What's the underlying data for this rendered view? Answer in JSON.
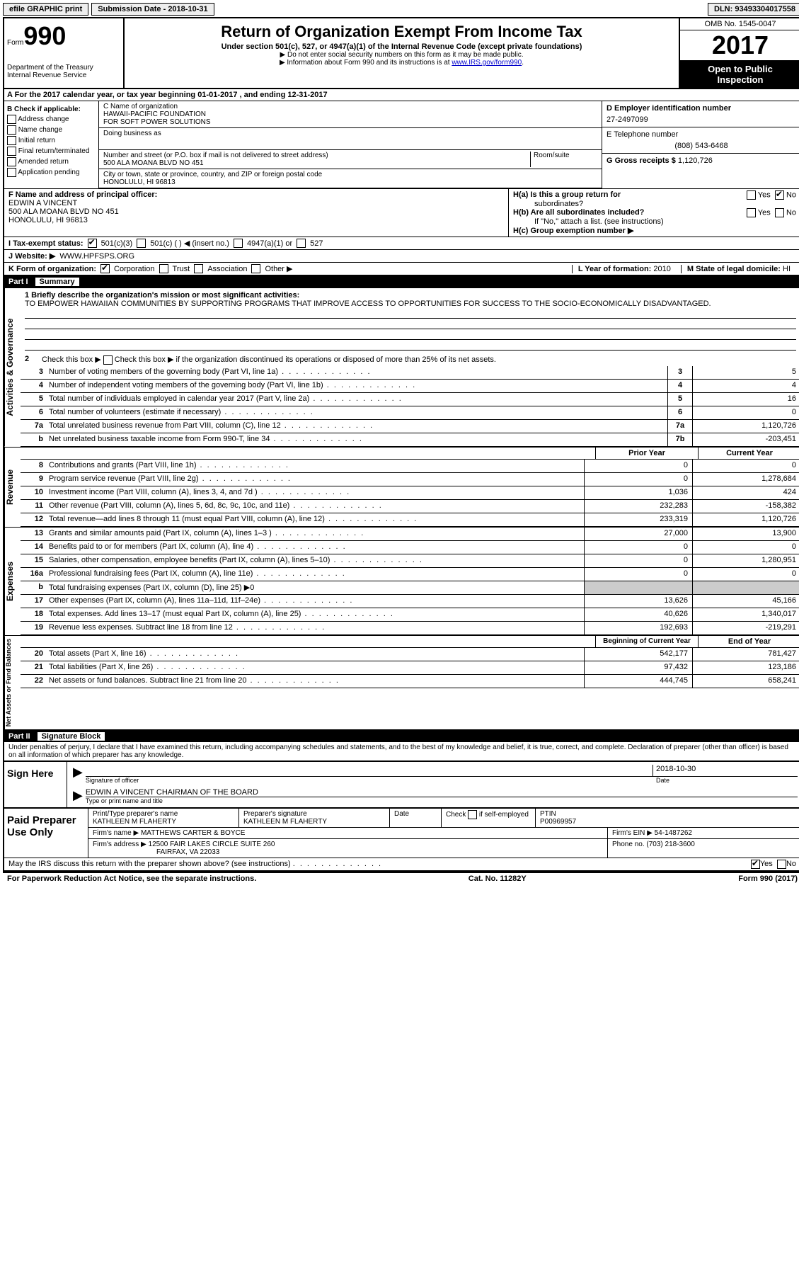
{
  "topbar": {
    "efile": "efile GRAPHIC print",
    "submission": "Submission Date - 2018-10-31",
    "dln": "DLN: 93493304017558"
  },
  "header": {
    "form_word": "Form",
    "form_num": "990",
    "dept1": "Department of the Treasury",
    "dept2": "Internal Revenue Service",
    "title": "Return of Organization Exempt From Income Tax",
    "sub": "Under section 501(c), 527, or 4947(a)(1) of the Internal Revenue Code (except private foundations)",
    "note1": "▶ Do not enter social security numbers on this form as it may be made public.",
    "note2_pre": "▶ Information about Form 990 and its instructions is at ",
    "note2_link": "www.IRS.gov/form990",
    "omb": "OMB No. 1545-0047",
    "year": "2017",
    "open1": "Open to Public",
    "open2": "Inspection"
  },
  "secA": "A   For the 2017 calendar year, or tax year beginning 01-01-2017    , and ending 12-31-2017",
  "colB": {
    "title": "B Check if applicable:",
    "items": [
      "Address change",
      "Name change",
      "Initial return",
      "Final return/terminated",
      "Amended return",
      "Application pending"
    ]
  },
  "colC": {
    "name_label": "C Name of organization",
    "name1": "HAWAII-PACIFIC FOUNDATION",
    "name2": "FOR SOFT POWER SOLUTIONS",
    "dba_label": "Doing business as",
    "street_label": "Number and street (or P.O. box if mail is not delivered to street address)",
    "room_label": "Room/suite",
    "street": "500 ALA MOANA BLVD NO 451",
    "city_label": "City or town, state or province, country, and ZIP or foreign postal code",
    "city": "HONOLULU, HI  96813"
  },
  "colD": {
    "ein_label": "D Employer identification number",
    "ein": "27-2497099",
    "phone_label": "E Telephone number",
    "phone": "(808) 543-6468",
    "gross_label": "G Gross receipts $",
    "gross": "1,120,726"
  },
  "colF": {
    "label": "F  Name and address of principal officer:",
    "name": "EDWIN A VINCENT",
    "addr1": "500 ALA MOANA BLVD NO 451",
    "addr2": "HONOLULU, HI  96813"
  },
  "colH": {
    "a_label": "H(a)  Is this a group return for",
    "a_sub": "subordinates?",
    "b_label": "H(b)  Are all subordinates included?",
    "b_note": "If \"No,\" attach a list. (see instructions)",
    "c_label": "H(c)  Group exemption number ▶",
    "yes": "Yes",
    "no": "No"
  },
  "rowI": {
    "label": "I   Tax-exempt status:",
    "o1": "501(c)(3)",
    "o2": "501(c) (   ) ◀ (insert no.)",
    "o3": "4947(a)(1) or",
    "o4": "527"
  },
  "rowJ": {
    "label": "J   Website: ▶",
    "val": "WWW.HPFSPS.ORG"
  },
  "rowK": {
    "label": "K Form of organization:",
    "o1": "Corporation",
    "o2": "Trust",
    "o3": "Association",
    "o4": "Other ▶"
  },
  "rowL": {
    "label": "L Year of formation:",
    "val": "2010"
  },
  "rowM": {
    "label": "M State of legal domicile:",
    "val": "HI"
  },
  "part1": {
    "num": "Part I",
    "title": "Summary"
  },
  "summary": {
    "l1_label": "1  Briefly describe the organization's mission or most significant activities:",
    "l1_text": "TO EMPOWER HAWAIIAN COMMUNITIES BY SUPPORTING PROGRAMS THAT IMPROVE ACCESS TO OPPORTUNITIES FOR SUCCESS TO THE SOCIO-ECONOMICALLY DISADVANTAGED.",
    "l2": "Check this box ▶       if the organization discontinued its operations or disposed of more than 25% of its net assets.",
    "rows_ag": [
      {
        "n": "3",
        "d": "Number of voting members of the governing body (Part VI, line 1a)",
        "b": "3",
        "v": "5"
      },
      {
        "n": "4",
        "d": "Number of independent voting members of the governing body (Part VI, line 1b)",
        "b": "4",
        "v": "4"
      },
      {
        "n": "5",
        "d": "Total number of individuals employed in calendar year 2017 (Part V, line 2a)",
        "b": "5",
        "v": "16"
      },
      {
        "n": "6",
        "d": "Total number of volunteers (estimate if necessary)",
        "b": "6",
        "v": "0"
      },
      {
        "n": "7a",
        "d": "Total unrelated business revenue from Part VIII, column (C), line 12",
        "b": "7a",
        "v": "1,120,726"
      },
      {
        "n": "b",
        "d": "Net unrelated business taxable income from Form 990-T, line 34",
        "b": "7b",
        "v": "-203,451"
      }
    ],
    "head_prior": "Prior Year",
    "head_current": "Current Year",
    "rows_rev": [
      {
        "n": "8",
        "d": "Contributions and grants (Part VIII, line 1h)",
        "p": "0",
        "c": "0"
      },
      {
        "n": "9",
        "d": "Program service revenue (Part VIII, line 2g)",
        "p": "0",
        "c": "1,278,684"
      },
      {
        "n": "10",
        "d": "Investment income (Part VIII, column (A), lines 3, 4, and 7d )",
        "p": "1,036",
        "c": "424"
      },
      {
        "n": "11",
        "d": "Other revenue (Part VIII, column (A), lines 5, 6d, 8c, 9c, 10c, and 11e)",
        "p": "232,283",
        "c": "-158,382"
      },
      {
        "n": "12",
        "d": "Total revenue—add lines 8 through 11 (must equal Part VIII, column (A), line 12)",
        "p": "233,319",
        "c": "1,120,726"
      }
    ],
    "rows_exp": [
      {
        "n": "13",
        "d": "Grants and similar amounts paid (Part IX, column (A), lines 1–3 )",
        "p": "27,000",
        "c": "13,900"
      },
      {
        "n": "14",
        "d": "Benefits paid to or for members (Part IX, column (A), line 4)",
        "p": "0",
        "c": "0"
      },
      {
        "n": "15",
        "d": "Salaries, other compensation, employee benefits (Part IX, column (A), lines 5–10)",
        "p": "0",
        "c": "1,280,951"
      },
      {
        "n": "16a",
        "d": "Professional fundraising fees (Part IX, column (A), line 11e)",
        "p": "0",
        "c": "0"
      },
      {
        "n": "b",
        "d": "Total fundraising expenses (Part IX, column (D), line 25) ▶0",
        "p": "",
        "c": "",
        "shade": true
      },
      {
        "n": "17",
        "d": "Other expenses (Part IX, column (A), lines 11a–11d, 11f–24e)",
        "p": "13,626",
        "c": "45,166"
      },
      {
        "n": "18",
        "d": "Total expenses. Add lines 13–17 (must equal Part IX, column (A), line 25)",
        "p": "40,626",
        "c": "1,340,017"
      },
      {
        "n": "19",
        "d": "Revenue less expenses. Subtract line 18 from line 12",
        "p": "192,693",
        "c": "-219,291"
      }
    ],
    "head_begin": "Beginning of Current Year",
    "head_end": "End of Year",
    "rows_net": [
      {
        "n": "20",
        "d": "Total assets (Part X, line 16)",
        "p": "542,177",
        "c": "781,427"
      },
      {
        "n": "21",
        "d": "Total liabilities (Part X, line 26)",
        "p": "97,432",
        "c": "123,186"
      },
      {
        "n": "22",
        "d": "Net assets or fund balances. Subtract line 21 from line 20",
        "p": "444,745",
        "c": "658,241"
      }
    ],
    "side_ag": "Activities & Governance",
    "side_rev": "Revenue",
    "side_exp": "Expenses",
    "side_net": "Net Assets or Fund Balances"
  },
  "part2": {
    "num": "Part II",
    "title": "Signature Block"
  },
  "sig": {
    "decl": "Under penalties of perjury, I declare that I have examined this return, including accompanying schedules and statements, and to the best of my knowledge and belief, it is true, correct, and complete. Declaration of preparer (other than officer) is based on all information of which preparer has any knowledge.",
    "sign_here": "Sign Here",
    "sig_label": "Signature of officer",
    "date_label": "Date",
    "date": "2018-10-30",
    "name": "EDWIN A VINCENT CHAIRMAN OF THE BOARD",
    "name_label": "Type or print name and title"
  },
  "prep": {
    "title": "Paid Preparer Use Only",
    "name_label": "Print/Type preparer's name",
    "name": "KATHLEEN M FLAHERTY",
    "sig_label": "Preparer's signature",
    "sig": "KATHLEEN M FLAHERTY",
    "date_label": "Date",
    "check_label": "Check        if self-employed",
    "ptin_label": "PTIN",
    "ptin": "P00969957",
    "firm_name_label": "Firm's name      ▶",
    "firm_name": "MATTHEWS CARTER & BOYCE",
    "firm_ein_label": "Firm's EIN ▶",
    "firm_ein": "54-1487262",
    "firm_addr_label": "Firm's address ▶",
    "firm_addr1": "12500 FAIR LAKES CIRCLE SUITE 260",
    "firm_addr2": "FAIRFAX, VA  22033",
    "phone_label": "Phone no.",
    "phone": "(703) 218-3600"
  },
  "footer": {
    "discuss": "May the IRS discuss this return with the preparer shown above? (see instructions)",
    "yes": "Yes",
    "no": "No",
    "paperwork": "For Paperwork Reduction Act Notice, see the separate instructions.",
    "cat": "Cat. No. 11282Y",
    "form": "Form 990 (2017)"
  }
}
